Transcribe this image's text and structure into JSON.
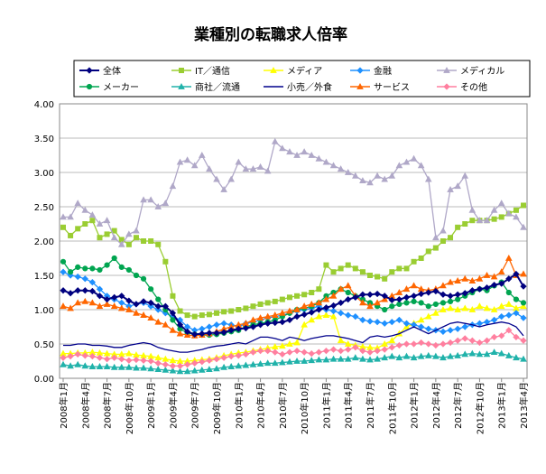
{
  "chart_data": {
    "type": "line",
    "title": "業種別の転職求人倍率",
    "xlabel": "",
    "ylabel": "",
    "ylim": [
      0,
      4
    ],
    "yticks": [
      "0.00",
      "0.50",
      "1.00",
      "1.50",
      "2.00",
      "2.50",
      "3.00",
      "3.50",
      "4.00"
    ],
    "x_tick_labels": [
      "2008年1月",
      "2008年4月",
      "2008年7月",
      "2008年10月",
      "2009年1月",
      "2009年4月",
      "2009年7月",
      "2009年10月",
      "2010年1月",
      "2010年4月",
      "2010年7月",
      "2010年10月",
      "2011年1月",
      "2011年4月",
      "2011年7月",
      "2011年10月",
      "2012年1月",
      "2012年4月",
      "2012年7月",
      "2012年10月",
      "2013年1月",
      "2013年4月"
    ],
    "num_points": 64,
    "legend_position": "top",
    "series": [
      {
        "name": "全体",
        "color": "#00007f",
        "marker": "diamond",
        "values": [
          1.28,
          1.24,
          1.28,
          1.28,
          1.27,
          1.2,
          1.15,
          1.18,
          1.2,
          1.13,
          1.08,
          1.12,
          1.1,
          1.05,
          1.05,
          0.95,
          0.78,
          0.68,
          0.64,
          0.65,
          0.66,
          0.66,
          0.67,
          0.7,
          0.72,
          0.73,
          0.75,
          0.78,
          0.8,
          0.81,
          0.82,
          0.85,
          0.9,
          0.93,
          0.96,
          1.0,
          1.03,
          1.06,
          1.1,
          1.15,
          1.18,
          1.22,
          1.22,
          1.23,
          1.2,
          1.14,
          1.15,
          1.18,
          1.2,
          1.23,
          1.25,
          1.27,
          1.22,
          1.2,
          1.22,
          1.24,
          1.28,
          1.3,
          1.32,
          1.36,
          1.38,
          1.45,
          1.52,
          1.34
        ]
      },
      {
        "name": "IT／通信",
        "color": "#9acd32",
        "marker": "square",
        "values": [
          2.2,
          2.08,
          2.18,
          2.25,
          2.3,
          2.05,
          2.1,
          2.15,
          2.02,
          1.95,
          2.05,
          2.0,
          2.0,
          1.95,
          1.7,
          1.2,
          0.98,
          0.92,
          0.9,
          0.92,
          0.93,
          0.95,
          0.97,
          0.98,
          1.0,
          1.02,
          1.05,
          1.08,
          1.1,
          1.12,
          1.15,
          1.18,
          1.2,
          1.22,
          1.25,
          1.3,
          1.65,
          1.55,
          1.6,
          1.65,
          1.6,
          1.55,
          1.5,
          1.48,
          1.45,
          1.55,
          1.6,
          1.6,
          1.7,
          1.75,
          1.85,
          1.9,
          2.0,
          2.05,
          2.2,
          2.25,
          2.3,
          2.3,
          2.3,
          2.32,
          2.35,
          2.4,
          2.45,
          2.52
        ]
      },
      {
        "name": "メディア",
        "color": "#ffff00",
        "marker": "triangle",
        "values": [
          0.36,
          0.36,
          0.37,
          0.37,
          0.38,
          0.37,
          0.36,
          0.35,
          0.35,
          0.36,
          0.34,
          0.33,
          0.32,
          0.3,
          0.28,
          0.26,
          0.25,
          0.25,
          0.26,
          0.27,
          0.28,
          0.3,
          0.33,
          0.35,
          0.37,
          0.38,
          0.4,
          0.42,
          0.44,
          0.46,
          0.47,
          0.5,
          0.52,
          0.78,
          0.85,
          0.9,
          0.92,
          0.9,
          0.55,
          0.5,
          0.48,
          0.46,
          0.45,
          0.44,
          0.5,
          0.55,
          0.65,
          0.75,
          0.8,
          0.85,
          0.9,
          0.95,
          1.0,
          1.02,
          1.0,
          1.02,
          1.0,
          1.05,
          1.02,
          1.0,
          1.05,
          1.08,
          1.02,
          1.05
        ]
      },
      {
        "name": "金融",
        "color": "#1e90ff",
        "marker": "diamond",
        "values": [
          1.55,
          1.5,
          1.48,
          1.45,
          1.4,
          1.3,
          1.2,
          1.15,
          1.1,
          1.05,
          1.08,
          1.1,
          1.05,
          1.0,
          0.95,
          0.9,
          0.85,
          0.75,
          0.7,
          0.72,
          0.75,
          0.78,
          0.8,
          0.78,
          0.75,
          0.8,
          0.82,
          0.85,
          0.88,
          0.9,
          0.92,
          0.95,
          0.98,
          1.0,
          1.02,
          1.05,
          1.0,
          0.98,
          0.95,
          0.92,
          0.9,
          0.85,
          0.83,
          0.82,
          0.8,
          0.82,
          0.85,
          0.8,
          0.78,
          0.75,
          0.72,
          0.7,
          0.68,
          0.7,
          0.72,
          0.75,
          0.78,
          0.8,
          0.82,
          0.85,
          0.9,
          0.92,
          0.95,
          0.88
        ]
      },
      {
        "name": "メディカル",
        "color": "#b0a8c8",
        "marker": "triangle",
        "values": [
          2.35,
          2.35,
          2.55,
          2.45,
          2.38,
          2.25,
          2.3,
          2.05,
          1.95,
          2.1,
          2.15,
          2.6,
          2.6,
          2.5,
          2.55,
          2.8,
          3.15,
          3.18,
          3.1,
          3.25,
          3.05,
          2.9,
          2.75,
          2.9,
          3.15,
          3.05,
          3.05,
          3.08,
          3.02,
          3.45,
          3.35,
          3.3,
          3.25,
          3.3,
          3.25,
          3.2,
          3.15,
          3.1,
          3.05,
          3.0,
          2.95,
          2.88,
          2.85,
          2.95,
          2.9,
          2.95,
          3.1,
          3.15,
          3.2,
          3.1,
          2.9,
          2.05,
          2.15,
          2.75,
          2.8,
          2.95,
          2.45,
          2.3,
          2.3,
          2.45,
          2.55,
          2.4,
          2.35,
          2.2
        ]
      },
      {
        "name": "メーカー",
        "color": "#00a550",
        "marker": "circle",
        "values": [
          1.7,
          1.55,
          1.62,
          1.6,
          1.6,
          1.58,
          1.65,
          1.75,
          1.62,
          1.58,
          1.5,
          1.45,
          1.3,
          1.15,
          1.0,
          0.85,
          0.72,
          0.66,
          0.64,
          0.63,
          0.63,
          0.64,
          0.66,
          0.68,
          0.7,
          0.75,
          0.78,
          0.8,
          0.82,
          0.85,
          0.9,
          0.95,
          1.0,
          1.02,
          1.05,
          1.1,
          1.2,
          1.25,
          1.3,
          1.25,
          1.2,
          1.15,
          1.1,
          1.05,
          1.0,
          1.05,
          1.08,
          1.1,
          1.12,
          1.1,
          1.05,
          1.08,
          1.1,
          1.12,
          1.15,
          1.2,
          1.25,
          1.3,
          1.28,
          1.35,
          1.4,
          1.25,
          1.15,
          1.1
        ]
      },
      {
        "name": "商社／流通",
        "color": "#20b2aa",
        "marker": "triangle",
        "values": [
          0.2,
          0.18,
          0.2,
          0.18,
          0.17,
          0.17,
          0.17,
          0.16,
          0.16,
          0.16,
          0.15,
          0.15,
          0.14,
          0.13,
          0.12,
          0.11,
          0.1,
          0.1,
          0.11,
          0.12,
          0.13,
          0.14,
          0.16,
          0.17,
          0.18,
          0.19,
          0.2,
          0.21,
          0.22,
          0.22,
          0.23,
          0.24,
          0.25,
          0.25,
          0.26,
          0.27,
          0.27,
          0.28,
          0.28,
          0.28,
          0.3,
          0.28,
          0.27,
          0.28,
          0.3,
          0.32,
          0.3,
          0.32,
          0.3,
          0.32,
          0.33,
          0.32,
          0.3,
          0.32,
          0.33,
          0.35,
          0.36,
          0.35,
          0.35,
          0.38,
          0.36,
          0.33,
          0.3,
          0.28
        ]
      },
      {
        "name": "小売／外食",
        "color": "#00008b",
        "marker": "line",
        "values": [
          0.48,
          0.48,
          0.5,
          0.5,
          0.48,
          0.48,
          0.47,
          0.45,
          0.45,
          0.48,
          0.5,
          0.52,
          0.5,
          0.45,
          0.42,
          0.4,
          0.38,
          0.38,
          0.4,
          0.42,
          0.45,
          0.47,
          0.48,
          0.5,
          0.52,
          0.5,
          0.55,
          0.6,
          0.6,
          0.58,
          0.55,
          0.6,
          0.58,
          0.55,
          0.58,
          0.6,
          0.62,
          0.62,
          0.6,
          0.58,
          0.55,
          0.52,
          0.6,
          0.62,
          0.6,
          0.62,
          0.65,
          0.7,
          0.75,
          0.7,
          0.65,
          0.7,
          0.75,
          0.8,
          0.82,
          0.8,
          0.78,
          0.75,
          0.78,
          0.8,
          0.82,
          0.8,
          0.75,
          0.62
        ]
      },
      {
        "name": "サービス",
        "color": "#ff6600",
        "marker": "triangle",
        "values": [
          1.05,
          1.02,
          1.1,
          1.12,
          1.1,
          1.05,
          1.08,
          1.05,
          1.02,
          1.0,
          0.95,
          0.92,
          0.88,
          0.82,
          0.78,
          0.7,
          0.65,
          0.63,
          0.62,
          0.63,
          0.65,
          0.68,
          0.72,
          0.75,
          0.78,
          0.8,
          0.85,
          0.88,
          0.9,
          0.92,
          0.95,
          0.98,
          1.0,
          1.05,
          1.08,
          1.1,
          1.15,
          1.2,
          1.3,
          1.35,
          1.2,
          1.1,
          1.05,
          1.1,
          1.15,
          1.2,
          1.25,
          1.3,
          1.35,
          1.3,
          1.28,
          1.3,
          1.35,
          1.4,
          1.42,
          1.45,
          1.42,
          1.45,
          1.5,
          1.48,
          1.55,
          1.75,
          1.5,
          1.52
        ]
      },
      {
        "name": "その他",
        "color": "#ff7f9f",
        "marker": "diamond",
        "values": [
          0.3,
          0.32,
          0.35,
          0.33,
          0.32,
          0.3,
          0.28,
          0.3,
          0.28,
          0.26,
          0.27,
          0.26,
          0.25,
          0.22,
          0.2,
          0.18,
          0.18,
          0.2,
          0.22,
          0.24,
          0.26,
          0.28,
          0.3,
          0.32,
          0.33,
          0.35,
          0.38,
          0.4,
          0.4,
          0.38,
          0.35,
          0.38,
          0.4,
          0.38,
          0.36,
          0.38,
          0.4,
          0.42,
          0.4,
          0.42,
          0.45,
          0.4,
          0.38,
          0.4,
          0.42,
          0.45,
          0.48,
          0.5,
          0.5,
          0.52,
          0.5,
          0.48,
          0.5,
          0.52,
          0.55,
          0.58,
          0.55,
          0.52,
          0.55,
          0.6,
          0.62,
          0.7,
          0.6,
          0.55
        ]
      }
    ]
  }
}
